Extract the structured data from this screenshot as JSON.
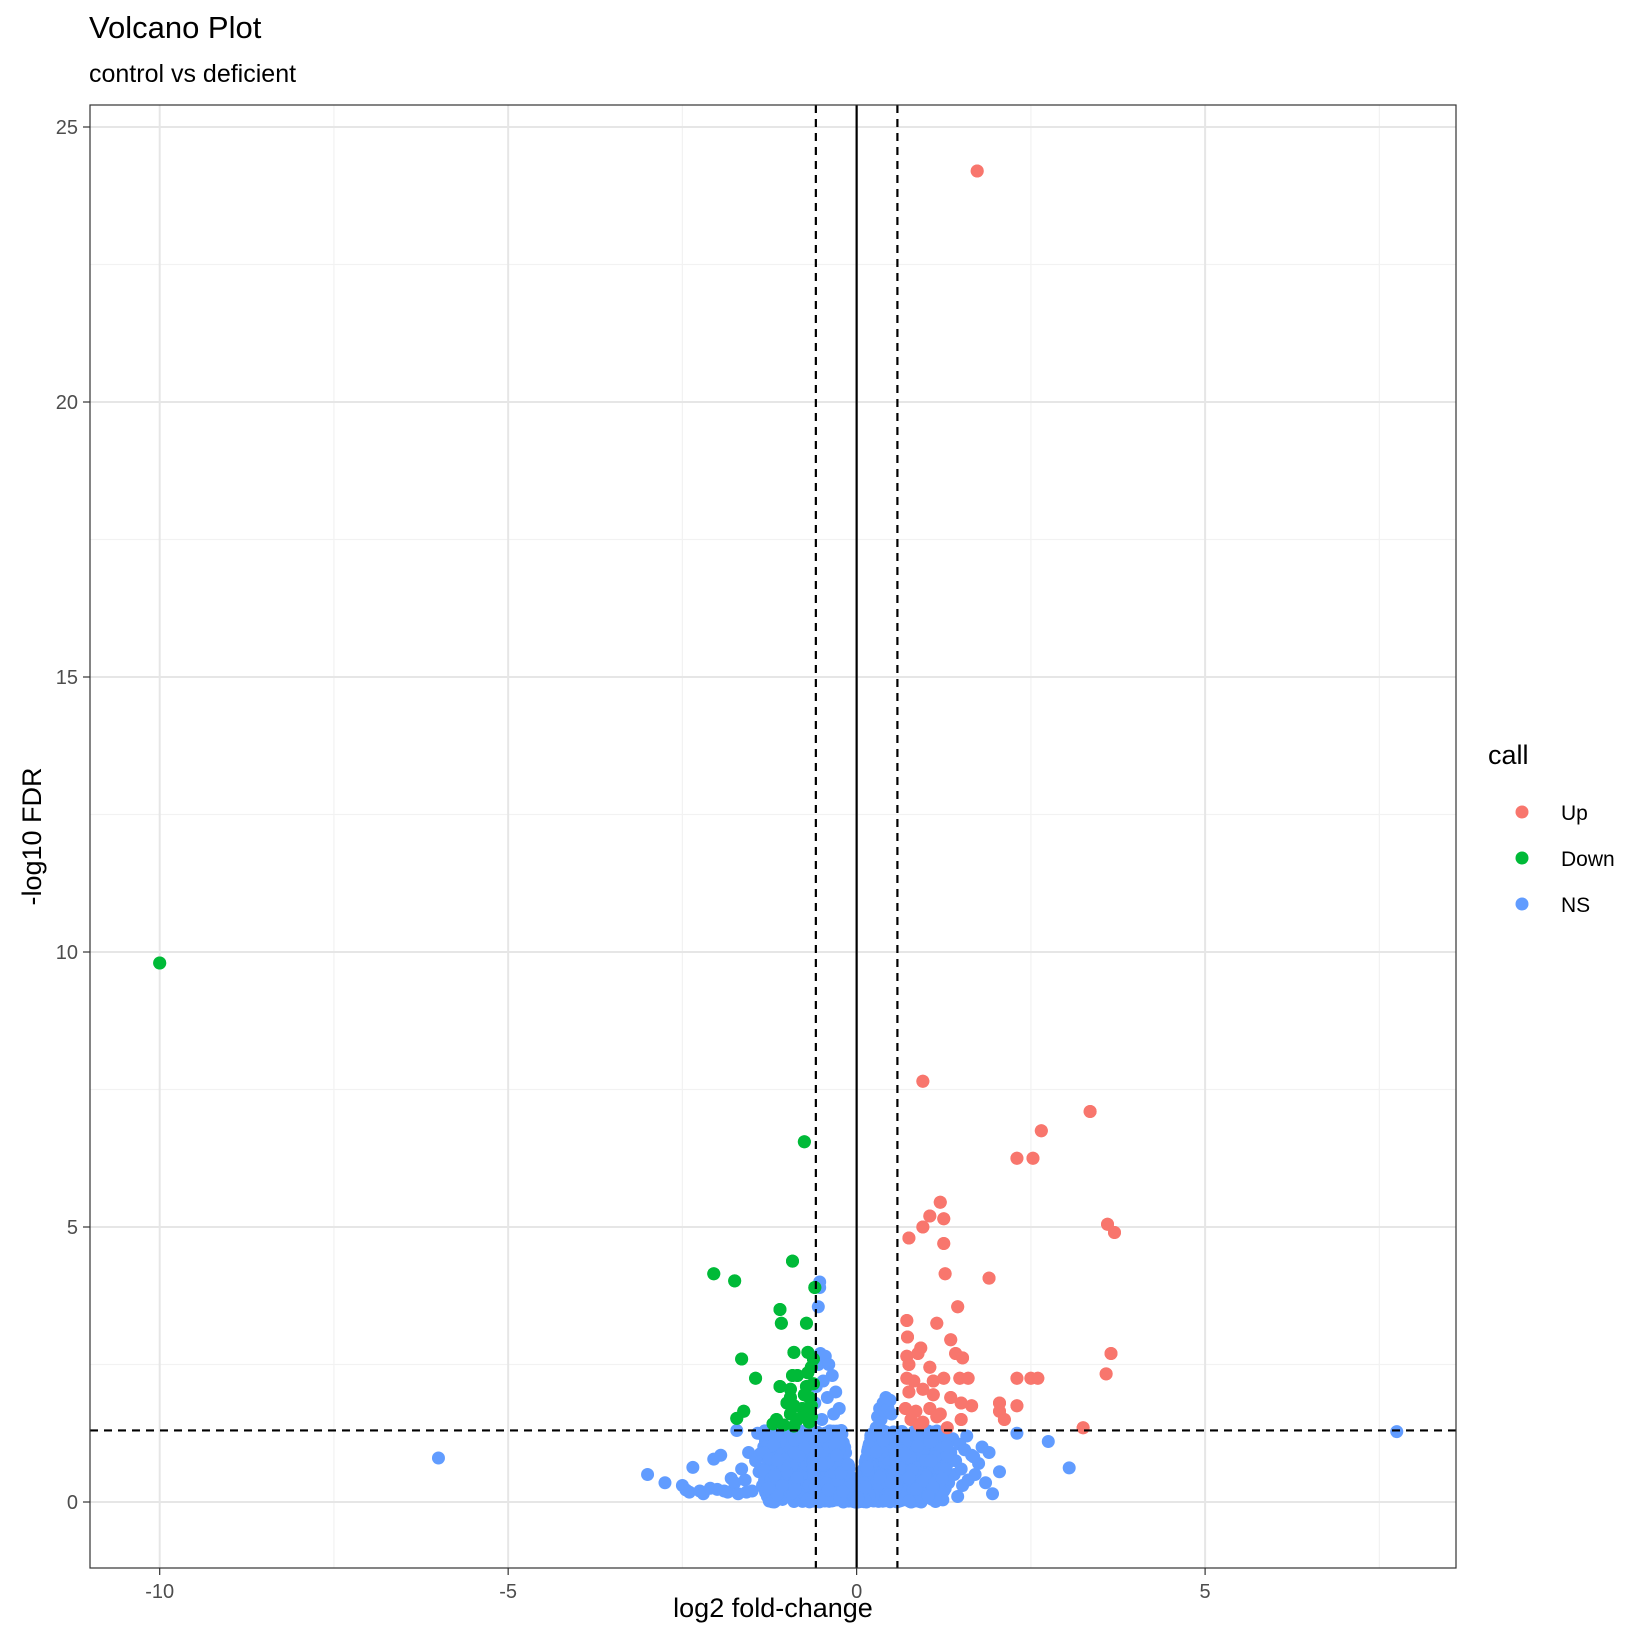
{
  "chart_data": {
    "type": "scatter",
    "title": "Volcano Plot",
    "subtitle": "control vs deficient",
    "xlabel": "log2 fold-change",
    "ylabel": "-log10 FDR",
    "xlim": [
      -11.0,
      8.6
    ],
    "ylim": [
      -1.2,
      25.4
    ],
    "x_ticks": [
      -10,
      -5,
      0,
      5
    ],
    "x_tick_labels": [
      "-10",
      "-5",
      "0",
      "5"
    ],
    "y_ticks": [
      0,
      5,
      10,
      15,
      20,
      25
    ],
    "y_tick_labels": [
      "0",
      "5",
      "10",
      "15",
      "20",
      "25"
    ],
    "x_minor_ticks": [
      -7.5,
      -2.5,
      2.5,
      7.5
    ],
    "y_minor_ticks": [
      2.5,
      7.5,
      12.5,
      17.5,
      22.5
    ],
    "grid": true,
    "reference_lines": {
      "vertical_solid": 0,
      "vertical_dashed": [
        -0.585,
        0.585
      ],
      "horizontal_dashed": 1.301
    },
    "legend": {
      "title": "call",
      "position": "right",
      "entries": [
        {
          "label": "Up",
          "color": "#F8766D"
        },
        {
          "label": "Down",
          "color": "#00BA38"
        },
        {
          "label": "NS",
          "color": "#619CFF"
        }
      ]
    },
    "series": [
      {
        "name": "NS",
        "color": "#619CFF",
        "points": [
          [
            -6.0,
            0.8
          ],
          [
            -3.0,
            0.5
          ],
          [
            -2.75,
            0.35
          ],
          [
            -2.5,
            0.3
          ],
          [
            -2.35,
            0.63
          ],
          [
            -2.45,
            0.22
          ],
          [
            -2.4,
            0.18
          ],
          [
            -2.25,
            0.2
          ],
          [
            -2.2,
            0.15
          ],
          [
            -2.1,
            0.25
          ],
          [
            -2.0,
            0.23
          ],
          [
            -2.05,
            0.78
          ],
          [
            -1.95,
            0.85
          ],
          [
            -1.9,
            0.2
          ],
          [
            -1.85,
            0.18
          ],
          [
            -1.8,
            0.43
          ],
          [
            -1.75,
            0.35
          ],
          [
            -1.72,
            1.3
          ],
          [
            -1.7,
            0.15
          ],
          [
            -1.65,
            0.6
          ],
          [
            -1.6,
            0.4
          ],
          [
            -1.55,
            0.9
          ],
          [
            -1.5,
            0.2
          ],
          [
            -1.45,
            0.75
          ],
          [
            -1.42,
            1.25
          ],
          [
            -1.4,
            0.55
          ],
          [
            -1.35,
            0.3
          ],
          [
            -1.3,
            1.0
          ],
          [
            -1.28,
            0.1
          ],
          [
            -1.25,
            0.65
          ],
          [
            -1.2,
            1.1
          ],
          [
            -1.18,
            0.35
          ],
          [
            -1.15,
            0.8
          ],
          [
            -1.1,
            1.2
          ],
          [
            -1.05,
            0.5
          ],
          [
            -1.02,
            0.95
          ],
          [
            -1.0,
            0.25
          ],
          [
            -0.97,
            1.15
          ],
          [
            -0.95,
            0.7
          ],
          [
            -0.9,
            0.4
          ],
          [
            -0.88,
            1.05
          ],
          [
            -0.85,
            0.85
          ],
          [
            -0.82,
            0.15
          ],
          [
            -0.8,
            1.25
          ],
          [
            -0.78,
            0.6
          ],
          [
            -0.75,
            0.95
          ],
          [
            -0.72,
            0.3
          ],
          [
            -0.7,
            1.3
          ],
          [
            -0.68,
            0.75
          ],
          [
            -0.65,
            1.1
          ],
          [
            -0.62,
            0.5
          ],
          [
            -0.6,
            1.8
          ],
          [
            -0.58,
            2.1
          ],
          [
            -0.55,
            2.5
          ],
          [
            -0.55,
            3.55
          ],
          [
            -0.53,
            4.0
          ],
          [
            -0.53,
            3.9
          ],
          [
            -0.52,
            2.7
          ],
          [
            -0.5,
            1.5
          ],
          [
            -0.48,
            2.2
          ],
          [
            -0.45,
            2.65
          ],
          [
            -0.43,
            1.2
          ],
          [
            -0.42,
            1.9
          ],
          [
            -0.4,
            2.5
          ],
          [
            -0.38,
            0.8
          ],
          [
            -0.35,
            2.3
          ],
          [
            -0.33,
            1.6
          ],
          [
            -0.3,
            2.0
          ],
          [
            -0.28,
            0.6
          ],
          [
            -0.25,
            1.7
          ],
          [
            -0.22,
            1.3
          ],
          [
            -0.2,
            1.0
          ],
          [
            -0.18,
            0.5
          ],
          [
            -0.15,
            0.7
          ],
          [
            -0.12,
            0.35
          ],
          [
            -0.1,
            0.2
          ],
          [
            -0.08,
            0.12
          ],
          [
            -0.05,
            0.06
          ],
          [
            -0.03,
            0.03
          ],
          [
            0.0,
            0.0
          ],
          [
            0.03,
            0.03
          ],
          [
            0.05,
            0.06
          ],
          [
            0.08,
            0.1
          ],
          [
            0.1,
            0.2
          ],
          [
            0.12,
            0.3
          ],
          [
            0.15,
            0.5
          ],
          [
            0.18,
            0.6
          ],
          [
            0.2,
            0.85
          ],
          [
            0.22,
            1.0
          ],
          [
            0.25,
            1.2
          ],
          [
            0.28,
            1.35
          ],
          [
            0.3,
            1.55
          ],
          [
            0.33,
            1.7
          ],
          [
            0.35,
            1.5
          ],
          [
            0.38,
            1.8
          ],
          [
            0.4,
            1.65
          ],
          [
            0.42,
            1.9
          ],
          [
            0.45,
            1.7
          ],
          [
            0.48,
            1.85
          ],
          [
            0.5,
            1.6
          ],
          [
            0.52,
            0.4
          ],
          [
            0.55,
            1.25
          ],
          [
            0.58,
            0.8
          ],
          [
            0.6,
            1.1
          ],
          [
            0.62,
            0.2
          ],
          [
            0.65,
            1.28
          ],
          [
            0.68,
            0.6
          ],
          [
            0.7,
            1.0
          ],
          [
            0.72,
            0.35
          ],
          [
            0.75,
            1.2
          ],
          [
            0.78,
            0.75
          ],
          [
            0.8,
            0.95
          ],
          [
            0.82,
            0.15
          ],
          [
            0.85,
            1.25
          ],
          [
            0.88,
            0.55
          ],
          [
            0.9,
            1.05
          ],
          [
            0.92,
            0.3
          ],
          [
            0.95,
            0.85
          ],
          [
            0.98,
            1.15
          ],
          [
            1.0,
            0.45
          ],
          [
            1.02,
            0.7
          ],
          [
            1.05,
            1.2
          ],
          [
            1.08,
            0.25
          ],
          [
            1.1,
            0.95
          ],
          [
            1.12,
            0.6
          ],
          [
            1.15,
            1.1
          ],
          [
            1.18,
            0.4
          ],
          [
            1.2,
            0.8
          ],
          [
            1.22,
            1.25
          ],
          [
            1.25,
            0.2
          ],
          [
            1.28,
            0.65
          ],
          [
            1.3,
            1.0
          ],
          [
            1.32,
            0.35
          ],
          [
            1.35,
            0.9
          ],
          [
            1.38,
            1.15
          ],
          [
            1.4,
            0.5
          ],
          [
            1.42,
            0.75
          ],
          [
            1.45,
            0.1
          ],
          [
            1.48,
            1.05
          ],
          [
            1.5,
            0.6
          ],
          [
            1.52,
            0.3
          ],
          [
            1.55,
            0.95
          ],
          [
            1.58,
            1.2
          ],
          [
            1.6,
            0.4
          ],
          [
            1.65,
            0.85
          ],
          [
            1.7,
            0.5
          ],
          [
            1.75,
            0.7
          ],
          [
            1.8,
            1.0
          ],
          [
            1.85,
            0.35
          ],
          [
            1.9,
            0.9
          ],
          [
            1.95,
            0.15
          ],
          [
            2.05,
            0.55
          ],
          [
            2.3,
            1.25
          ],
          [
            2.75,
            1.1
          ],
          [
            3.05,
            0.62
          ],
          [
            7.75,
            1.28
          ],
          [
            1.68,
            0.82
          ],
          [
            1.02,
            1.23
          ],
          [
            -0.92,
            1.02
          ],
          [
            -1.38,
            0.88
          ],
          [
            -1.58,
            0.18
          ]
        ]
      },
      {
        "name": "Up",
        "color": "#F8766D",
        "points": [
          [
            1.73,
            24.2
          ],
          [
            0.95,
            7.65
          ],
          [
            3.35,
            7.1
          ],
          [
            2.65,
            6.75
          ],
          [
            2.3,
            6.25
          ],
          [
            2.53,
            6.25
          ],
          [
            1.2,
            5.45
          ],
          [
            1.05,
            5.2
          ],
          [
            1.25,
            5.15
          ],
          [
            0.95,
            5.0
          ],
          [
            0.75,
            4.8
          ],
          [
            3.6,
            5.05
          ],
          [
            3.7,
            4.9
          ],
          [
            1.25,
            4.7
          ],
          [
            1.27,
            4.15
          ],
          [
            1.9,
            4.07
          ],
          [
            1.45,
            3.55
          ],
          [
            0.72,
            3.3
          ],
          [
            1.15,
            3.25
          ],
          [
            0.73,
            3.0
          ],
          [
            1.35,
            2.95
          ],
          [
            0.92,
            2.8
          ],
          [
            0.88,
            2.7
          ],
          [
            0.72,
            2.65
          ],
          [
            1.42,
            2.7
          ],
          [
            1.52,
            2.62
          ],
          [
            3.65,
            2.7
          ],
          [
            0.75,
            2.5
          ],
          [
            1.05,
            2.45
          ],
          [
            0.72,
            2.25
          ],
          [
            0.82,
            2.2
          ],
          [
            1.1,
            2.2
          ],
          [
            1.25,
            2.25
          ],
          [
            1.48,
            2.25
          ],
          [
            1.6,
            2.25
          ],
          [
            2.3,
            2.25
          ],
          [
            2.5,
            2.25
          ],
          [
            2.6,
            2.25
          ],
          [
            3.58,
            2.33
          ],
          [
            0.75,
            2.0
          ],
          [
            0.95,
            2.05
          ],
          [
            1.1,
            1.95
          ],
          [
            1.35,
            1.9
          ],
          [
            1.5,
            1.8
          ],
          [
            2.05,
            1.8
          ],
          [
            2.3,
            1.75
          ],
          [
            0.7,
            1.7
          ],
          [
            0.85,
            1.65
          ],
          [
            1.05,
            1.7
          ],
          [
            1.2,
            1.6
          ],
          [
            1.65,
            1.75
          ],
          [
            2.05,
            1.65
          ],
          [
            0.78,
            1.5
          ],
          [
            0.95,
            1.45
          ],
          [
            1.15,
            1.55
          ],
          [
            1.5,
            1.5
          ],
          [
            2.12,
            1.5
          ],
          [
            3.25,
            1.35
          ],
          [
            0.9,
            1.4
          ],
          [
            1.3,
            1.35
          ]
        ]
      },
      {
        "name": "Down",
        "color": "#00BA38",
        "points": [
          [
            -10.0,
            9.8
          ],
          [
            -0.75,
            6.55
          ],
          [
            -0.92,
            4.38
          ],
          [
            -2.05,
            4.15
          ],
          [
            -1.75,
            4.02
          ],
          [
            -0.6,
            3.9
          ],
          [
            -1.1,
            3.5
          ],
          [
            -1.08,
            3.25
          ],
          [
            -0.72,
            3.25
          ],
          [
            -1.65,
            2.6
          ],
          [
            -0.9,
            2.72
          ],
          [
            -0.7,
            2.72
          ],
          [
            -0.62,
            2.6
          ],
          [
            -0.65,
            2.45
          ],
          [
            -0.7,
            2.35
          ],
          [
            -0.92,
            2.3
          ],
          [
            -0.85,
            2.3
          ],
          [
            -1.45,
            2.25
          ],
          [
            -1.1,
            2.1
          ],
          [
            -0.95,
            2.05
          ],
          [
            -0.72,
            2.1
          ],
          [
            -0.62,
            2.15
          ],
          [
            -0.95,
            1.9
          ],
          [
            -0.75,
            1.95
          ],
          [
            -0.68,
            1.9
          ],
          [
            -1.0,
            1.8
          ],
          [
            -0.9,
            1.75
          ],
          [
            -0.78,
            1.7
          ],
          [
            -0.65,
            1.75
          ],
          [
            -1.62,
            1.65
          ],
          [
            -0.95,
            1.6
          ],
          [
            -0.72,
            1.6
          ],
          [
            -0.65,
            1.55
          ],
          [
            -1.72,
            1.52
          ],
          [
            -1.15,
            1.5
          ],
          [
            -0.85,
            1.5
          ],
          [
            -1.2,
            1.42
          ],
          [
            -0.68,
            1.45
          ],
          [
            -1.05,
            1.4
          ],
          [
            -0.9,
            1.38
          ]
        ]
      }
    ]
  }
}
